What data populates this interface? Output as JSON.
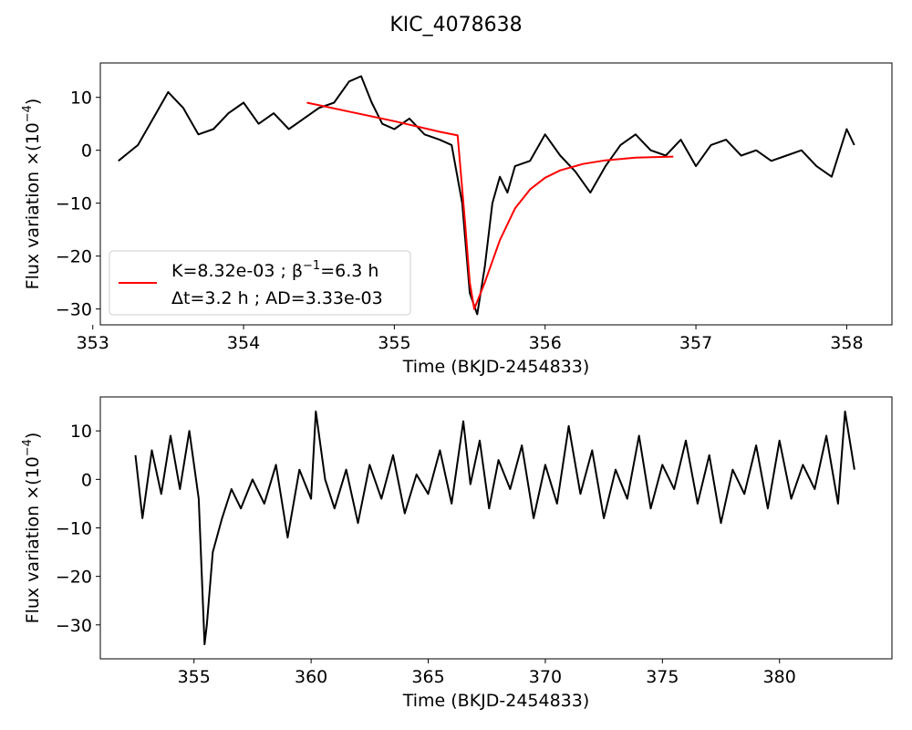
{
  "figure": {
    "title": "KIC_4078638"
  },
  "chart_data": [
    {
      "type": "line",
      "xlabel": "Time (BKJD-2454833)",
      "ylabel": "Flux variation ×(10",
      "ylabel_exp": "−4",
      "ylabel_close": ")",
      "xlim": [
        353.05,
        358.3
      ],
      "ylim": [
        -33,
        16.5
      ],
      "xticks": [
        353,
        354,
        355,
        356,
        357,
        358
      ],
      "yticks": [
        10,
        0,
        -10,
        -20,
        -30
      ],
      "grid": false,
      "legend": {
        "placement": "lower-left",
        "line1": "K=8.32e-03 ; β",
        "line1_exp": "−1",
        "line1_tail": "=6.3 h",
        "line2": "Δt=3.2 h ; AD=3.33e-03"
      },
      "series": [
        {
          "color": "#000000",
          "x": [
            353.17,
            353.3,
            353.4,
            353.5,
            353.6,
            353.7,
            353.8,
            353.9,
            354.0,
            354.1,
            354.2,
            354.3,
            354.4,
            354.5,
            354.6,
            354.7,
            354.78,
            354.85,
            354.92,
            355.0,
            355.1,
            355.2,
            355.3,
            355.38,
            355.45,
            355.5,
            355.55,
            355.6,
            355.65,
            355.7,
            355.75,
            355.8,
            355.9,
            356.0,
            356.1,
            356.2,
            356.3,
            356.4,
            356.5,
            356.6,
            356.7,
            356.8,
            356.9,
            357.0,
            357.1,
            357.2,
            357.3,
            357.4,
            357.5,
            357.6,
            357.7,
            357.8,
            357.9,
            358.0,
            358.05
          ],
          "y": [
            -2,
            1,
            6,
            11,
            8,
            3,
            4,
            7,
            9,
            5,
            7,
            4,
            6,
            8,
            9,
            13,
            14,
            9,
            5,
            4,
            6,
            3,
            2,
            1,
            -10,
            -27,
            -31,
            -22,
            -10,
            -5,
            -8,
            -3,
            -2,
            3,
            -1,
            -4,
            -8,
            -3,
            1,
            3,
            0,
            -1,
            2,
            -3,
            1,
            2,
            -1,
            0,
            -2,
            -1,
            0,
            -3,
            -5,
            4,
            1
          ]
        },
        {
          "color": "#ff0000",
          "x": [
            354.42,
            354.7,
            355.0,
            355.3,
            355.42,
            355.47,
            355.5,
            355.53,
            355.6,
            355.7,
            355.8,
            355.9,
            356.0,
            356.1,
            356.25,
            356.4,
            356.6,
            356.85
          ],
          "y": [
            9,
            7.3,
            5.5,
            3.5,
            2.8,
            -14,
            -25,
            -30,
            -25,
            -17,
            -11,
            -7.4,
            -5.2,
            -3.8,
            -2.6,
            -1.9,
            -1.4,
            -1.2
          ]
        }
      ]
    },
    {
      "type": "line",
      "xlabel": "Time (BKJD-2454833)",
      "ylabel": "Flux variation ×(10",
      "ylabel_exp": "−4",
      "ylabel_close": ")",
      "xlim": [
        351.0,
        384.8
      ],
      "ylim": [
        -37,
        17
      ],
      "xticks": [
        355,
        360,
        365,
        370,
        375,
        380
      ],
      "yticks": [
        10,
        0,
        -10,
        -20,
        -30
      ],
      "grid": false,
      "series": [
        {
          "color": "#000000",
          "x": [
            352.5,
            352.8,
            353.2,
            353.6,
            354.0,
            354.4,
            354.8,
            355.2,
            355.45,
            355.55,
            355.8,
            356.2,
            356.6,
            357.0,
            357.5,
            358.0,
            358.5,
            359.0,
            359.5,
            360.0,
            360.2,
            360.6,
            361.0,
            361.5,
            362.0,
            362.5,
            363.0,
            363.5,
            364.0,
            364.5,
            365.0,
            365.5,
            366.0,
            366.5,
            366.8,
            367.2,
            367.6,
            368.0,
            368.5,
            369.0,
            369.5,
            370.0,
            370.5,
            371.0,
            371.5,
            372.0,
            372.5,
            373.0,
            373.5,
            374.0,
            374.5,
            375.0,
            375.5,
            376.0,
            376.5,
            377.0,
            377.5,
            378.0,
            378.5,
            379.0,
            379.5,
            380.0,
            380.5,
            381.0,
            381.5,
            382.0,
            382.5,
            382.8,
            383.2
          ],
          "y": [
            5,
            -8,
            6,
            -3,
            9,
            -2,
            10,
            -4,
            -34,
            -30,
            -15,
            -8,
            -2,
            -6,
            0,
            -5,
            3,
            -12,
            2,
            -4,
            14,
            0,
            -6,
            2,
            -9,
            3,
            -4,
            5,
            -7,
            1,
            -3,
            6,
            -5,
            12,
            -1,
            8,
            -6,
            4,
            -2,
            7,
            -8,
            3,
            -5,
            11,
            -3,
            6,
            -8,
            2,
            -4,
            9,
            -6,
            3,
            -2,
            8,
            -5,
            5,
            -9,
            2,
            -3,
            7,
            -6,
            8,
            -4,
            3,
            -2,
            9,
            -5,
            14,
            2
          ]
        }
      ]
    }
  ]
}
